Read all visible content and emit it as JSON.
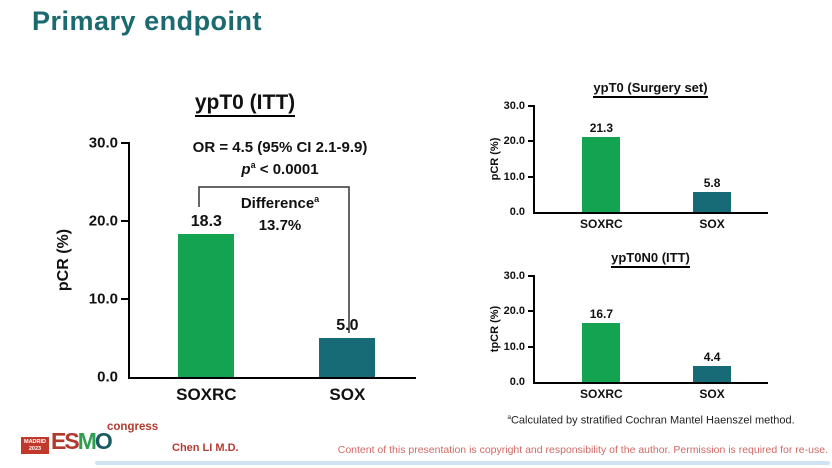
{
  "slide": {
    "title": "Primary endpoint",
    "presenter": "Chen LI M.D.",
    "disclaimer": "Content of this presentation is copyright and responsibility of the author. Permission is required for re-use.",
    "footnote": {
      "sup": "a",
      "text": "Calculated by stratified Cochran Mantel Haenszel method."
    },
    "logo": {
      "city": "MADRID",
      "year": "2023",
      "letters": [
        "E",
        "S",
        "M",
        "O"
      ],
      "suffix": "congress"
    }
  },
  "colors": {
    "title_teal": "#1b6a6f",
    "bar_green": "#13a351",
    "bar_teal": "#176b77",
    "logo_red": "#b03a2e",
    "disclaimer_red": "#cf6a65"
  },
  "chart_data": [
    {
      "type": "bar",
      "title": "ypT0 (ITT)",
      "ylabel": "pCR (%)",
      "categories": [
        "SOXRC",
        "SOX"
      ],
      "values": [
        18.3,
        5.0
      ],
      "value_labels": [
        "18.3",
        "5.0"
      ],
      "ylim": [
        0,
        30
      ],
      "yticks": [
        "30.0",
        "20.0",
        "10.0",
        "0.0"
      ],
      "grid": false,
      "annotations": {
        "or_text": "OR = 4.5 (95% CI 2.1-9.9)",
        "p_italic": "p",
        "p_sup": "a",
        "p_rest": " < 0.0001",
        "diff_label": "Difference",
        "diff_sup": "a",
        "diff_value": "13.7%"
      }
    },
    {
      "type": "bar",
      "title": "ypT0 (Surgery set)",
      "ylabel": "pCR (%)",
      "categories": [
        "SOXRC",
        "SOX"
      ],
      "values": [
        21.3,
        5.8
      ],
      "value_labels": [
        "21.3",
        "5.8"
      ],
      "ylim": [
        0,
        30
      ],
      "yticks": [
        "30.0",
        "20.0",
        "10.0",
        "0.0"
      ],
      "grid": false
    },
    {
      "type": "bar",
      "title": "ypT0N0 (ITT)",
      "ylabel": "tpCR (%)",
      "categories": [
        "SOXRC",
        "SOX"
      ],
      "values": [
        16.7,
        4.4
      ],
      "value_labels": [
        "16.7",
        "4.4"
      ],
      "ylim": [
        0,
        30
      ],
      "yticks": [
        "30.0",
        "20.0",
        "10.0",
        "0.0"
      ],
      "grid": false
    }
  ]
}
